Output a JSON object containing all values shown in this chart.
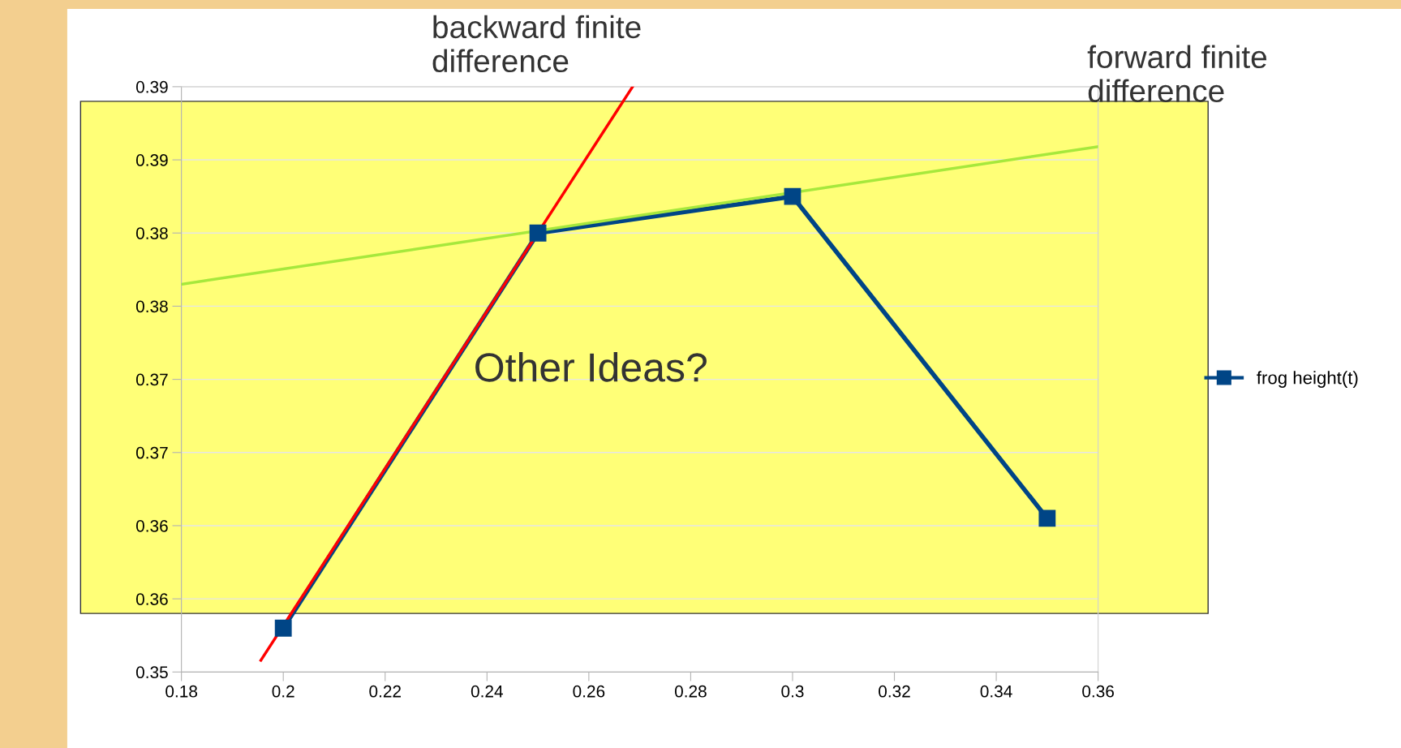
{
  "chart_data": {
    "type": "line",
    "xlim": [
      0.18,
      0.36
    ],
    "xticks": [
      0.18,
      0.2,
      0.22,
      0.24,
      0.26,
      0.28,
      0.3,
      0.32,
      0.34,
      0.36
    ],
    "ylim": [
      0.35,
      0.39
    ],
    "yticks": [
      {
        "value": 0.35,
        "label": "0.35"
      },
      {
        "value": 0.355,
        "label": "0.36"
      },
      {
        "value": 0.36,
        "label": "0.36"
      },
      {
        "value": 0.365,
        "label": "0.37"
      },
      {
        "value": 0.37,
        "label": "0.37"
      },
      {
        "value": 0.375,
        "label": "0.38"
      },
      {
        "value": 0.38,
        "label": "0.38"
      },
      {
        "value": 0.385,
        "label": "0.39"
      },
      {
        "value": 0.39,
        "label": "0.39"
      }
    ],
    "bands": [
      {
        "axis": "y",
        "from": 0.354,
        "to": 0.389,
        "color": "#ffff77"
      }
    ],
    "grid": "y",
    "legend": "right",
    "marker": "square",
    "line_style": "solid",
    "series": [
      {
        "name": "frog height(t)",
        "color": "#004586",
        "x": [
          0.2,
          0.25,
          0.3,
          0.35
        ],
        "values": [
          0.353,
          0.38,
          0.3825,
          0.3605
        ]
      },
      {
        "type": "line",
        "color": "#ff0000",
        "marker": "none",
        "x": [
          0.1956,
          0.2686
        ],
        "values": [
          0.3508,
          0.39
        ]
      },
      {
        "type": "line",
        "color": "#a6e83c",
        "marker": "none",
        "x": [
          0.18,
          0.36
        ],
        "values": [
          0.3765,
          0.3859
        ]
      }
    ],
    "annotations": [
      "backward finite\ndifference",
      "forward finite\ndifference",
      "Other Ideas?"
    ]
  }
}
